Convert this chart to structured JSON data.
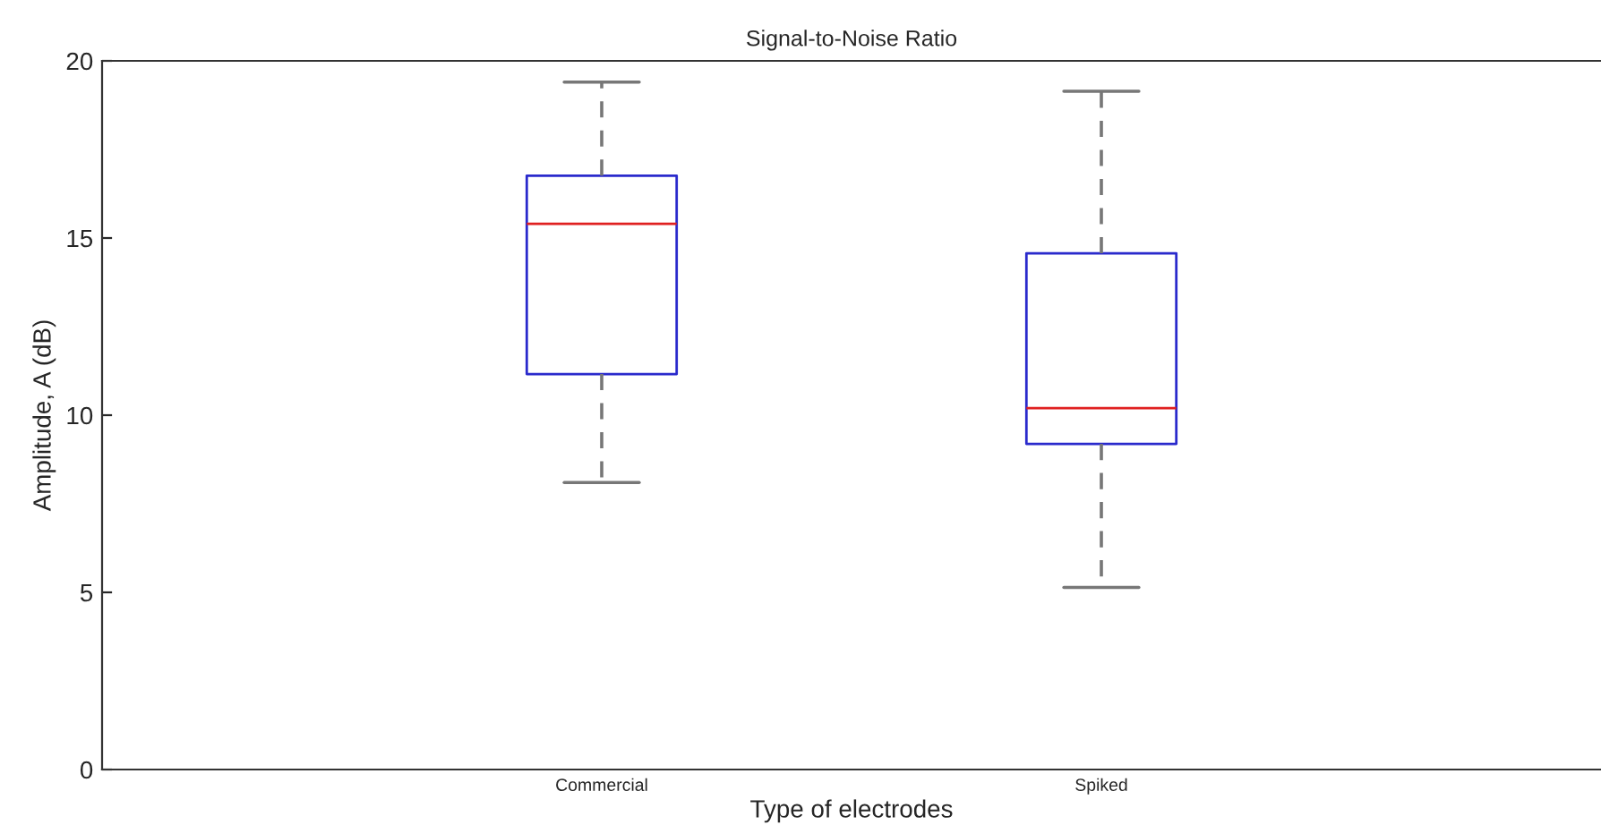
{
  "chart_data": {
    "type": "box",
    "title": "Signal-to-Noise Ratio",
    "xlabel": "Type of electrodes",
    "ylabel": "Amplitude, A (dB)",
    "categories": [
      "Commercial",
      "Spiked"
    ],
    "boxes": [
      {
        "low": 8.1,
        "q1": 11.16,
        "median": 15.4,
        "q3": 16.76,
        "high": 19.4
      },
      {
        "low": 5.14,
        "q1": 9.19,
        "median": 10.2,
        "q3": 14.57,
        "high": 19.14
      }
    ],
    "color": "#2a2acc",
    "ylim": [
      0,
      20
    ],
    "yticks": [
      0,
      5,
      10,
      15,
      20
    ],
    "grid": false
  }
}
